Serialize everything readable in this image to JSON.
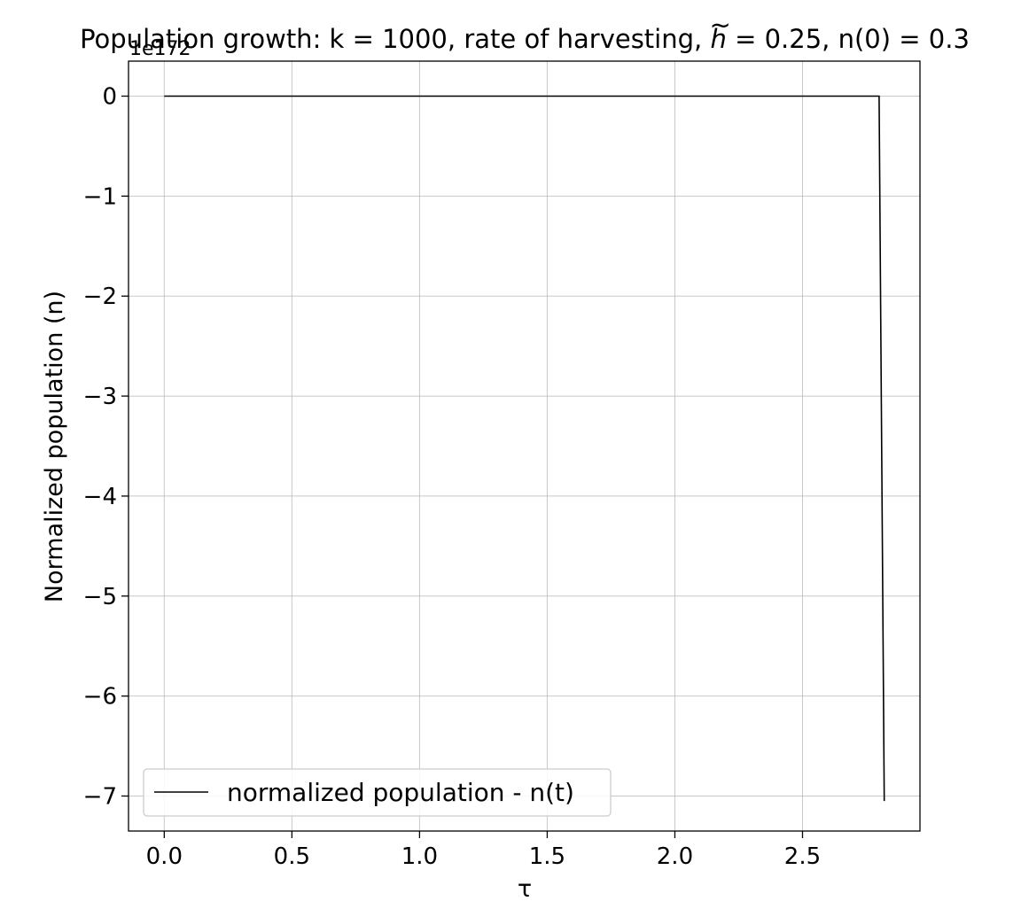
{
  "chart_data": {
    "type": "line",
    "title_pre": "Population growth: k = 1000, rate of harvesting, ",
    "title_h": "h",
    "title_tilde": "~",
    "title_post": " = 0.25, n(0) = 0.3",
    "xlabel": "τ",
    "ylabel": "Normalized population (n)",
    "y_offset_label": "1e172",
    "xlim": [
      -0.14,
      2.96
    ],
    "ylim": [
      -7.35,
      0.35
    ],
    "xticks": [
      0.0,
      0.5,
      1.0,
      1.5,
      2.0,
      2.5
    ],
    "xtick_labels": [
      "0.0",
      "0.5",
      "1.0",
      "1.5",
      "2.0",
      "2.5"
    ],
    "yticks": [
      0,
      -1,
      -2,
      -3,
      -4,
      -5,
      -6,
      -7
    ],
    "ytick_labels": [
      "0",
      "−1",
      "−2",
      "−3",
      "−4",
      "−5",
      "−6",
      "−7"
    ],
    "grid": true,
    "legend_position": "lower-left",
    "series": [
      {
        "name": "normalized population - n(t)",
        "color": "#000000",
        "x": [
          0.0,
          2.8,
          2.82
        ],
        "y": [
          0,
          0,
          -7.05
        ]
      }
    ]
  }
}
